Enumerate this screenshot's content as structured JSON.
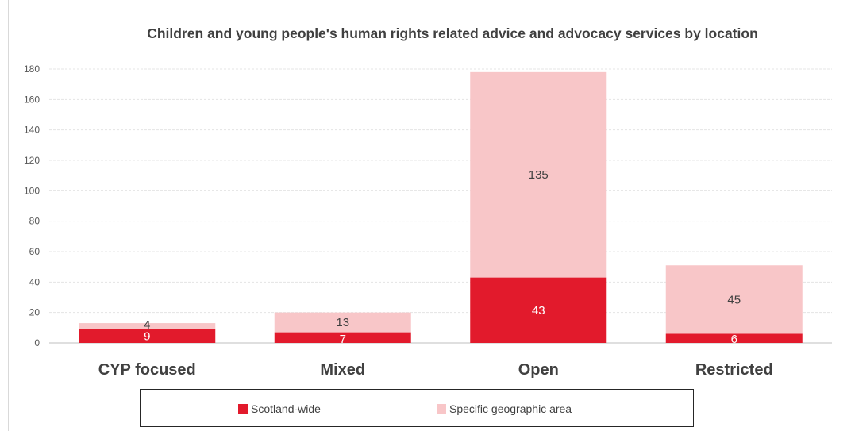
{
  "chart_data": {
    "type": "bar",
    "stacked": true,
    "title": "Children and young people's human rights related advice and advocacy services by location",
    "categories": [
      "CYP focused",
      "Mixed",
      "Open",
      "Restricted"
    ],
    "series": [
      {
        "name": "Scotland-wide",
        "values": [
          9,
          7,
          43,
          6
        ],
        "color": "#e21a2c",
        "label_color": "#ffffff"
      },
      {
        "name": "Specific geographic area",
        "values": [
          4,
          13,
          135,
          45
        ],
        "color": "#f8c6c8",
        "label_color": "#404040"
      }
    ],
    "ylim": [
      0,
      180
    ],
    "yticks": [
      0,
      20,
      40,
      60,
      80,
      100,
      120,
      140,
      160,
      180
    ],
    "grid": true,
    "legend": "bottom",
    "xlabel": "",
    "ylabel": ""
  }
}
